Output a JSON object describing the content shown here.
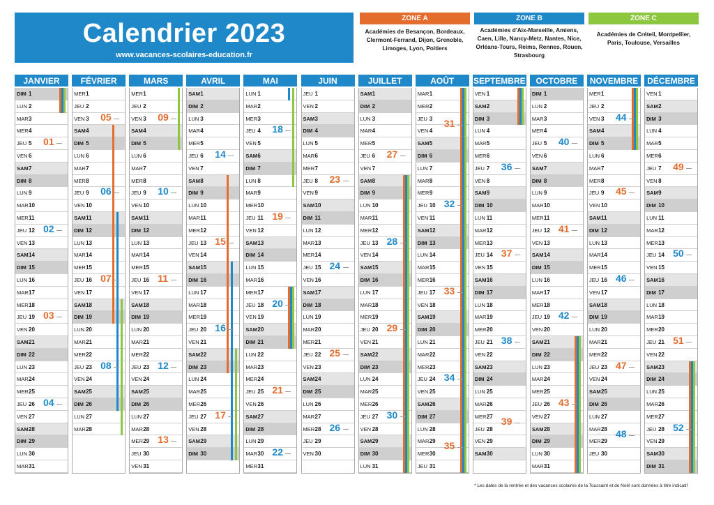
{
  "header": {
    "title": "Calendrier 2023",
    "site": "www.vacances-scolaires-education.fr"
  },
  "zones": [
    {
      "label": "ZONE A",
      "color": "#e46c2d",
      "text": "Académies de Besançon, Bordeaux, Clermont-Ferrand, Dijon, Grenoble, Limoges, Lyon, Poitiers"
    },
    {
      "label": "ZONE B",
      "color": "#1e88c9",
      "text": "Académies d'Aix-Marseille, Amiens, Caen, Lille, Nancy-Metz, Nantes, Nice, Orléans-Tours, Reims, Rennes, Rouen, Strasbourg"
    },
    {
      "label": "ZONE C",
      "color": "#8dc63f",
      "text": "Académies de Créteil, Montpellier, Paris, Toulouse, Versailles"
    }
  ],
  "colors": {
    "zoneA": "#e46c2d",
    "zoneB": "#1e88c9",
    "zoneC": "#8dc63f",
    "weekOdd": "#e46c2d",
    "weekEven": "#1e88c9"
  },
  "day_abbrev": [
    "DIM",
    "LUN",
    "MAR",
    "MER",
    "JEU",
    "VEN",
    "SAM"
  ],
  "months": [
    {
      "name": "JANVIER",
      "start": 0,
      "days": 31
    },
    {
      "name": "FÉVRIER",
      "start": 3,
      "days": 28
    },
    {
      "name": "MARS",
      "start": 3,
      "days": 31
    },
    {
      "name": "AVRIL",
      "start": 6,
      "days": 30
    },
    {
      "name": "MAI",
      "start": 1,
      "days": 31
    },
    {
      "name": "JUIN",
      "start": 4,
      "days": 30
    },
    {
      "name": "JUILLET",
      "start": 6,
      "days": 31
    },
    {
      "name": "AOÛT",
      "start": 2,
      "days": 31
    },
    {
      "name": "SEPTEMBRE",
      "start": 5,
      "days": 30
    },
    {
      "name": "OCTOBRE",
      "start": 0,
      "days": 31
    },
    {
      "name": "NOVEMBRE",
      "start": 3,
      "days": 30
    },
    {
      "name": "DÉCEMBRE",
      "start": 5,
      "days": 31
    }
  ],
  "holidays": [
    {
      "month": 0,
      "from": 1,
      "to": 2,
      "zones": [
        "A",
        "B",
        "C"
      ]
    },
    {
      "month": 1,
      "from": 4,
      "to": 19,
      "zones": [
        "A"
      ]
    },
    {
      "month": 1,
      "from": 11,
      "to": 26,
      "zones": [
        "B"
      ]
    },
    {
      "month": 1,
      "from": 18,
      "to": 28,
      "zones": [
        "C"
      ]
    },
    {
      "month": 2,
      "from": 1,
      "to": 5,
      "zones": [
        "C"
      ]
    },
    {
      "month": 3,
      "from": 8,
      "to": 23,
      "zones": [
        "A"
      ]
    },
    {
      "month": 3,
      "from": 15,
      "to": 30,
      "zones": [
        "B"
      ]
    },
    {
      "month": 3,
      "from": 22,
      "to": 30,
      "zones": [
        "C"
      ]
    },
    {
      "month": 4,
      "from": 1,
      "to": 1,
      "zones": [
        "B"
      ]
    },
    {
      "month": 4,
      "from": 1,
      "to": 8,
      "zones": [
        "C"
      ]
    },
    {
      "month": 4,
      "from": 17,
      "to": 21,
      "zones": [
        "A",
        "B",
        "C"
      ]
    },
    {
      "month": 6,
      "from": 8,
      "to": 31,
      "zones": [
        "A",
        "B",
        "C"
      ]
    },
    {
      "month": 7,
      "from": 1,
      "to": 31,
      "zones": [
        "A",
        "B",
        "C"
      ]
    },
    {
      "month": 8,
      "from": 1,
      "to": 3,
      "zones": [
        "A",
        "B",
        "C"
      ]
    },
    {
      "month": 9,
      "from": 21,
      "to": 31,
      "zones": [
        "A",
        "B",
        "C"
      ]
    },
    {
      "month": 10,
      "from": 1,
      "to": 5,
      "zones": [
        "A",
        "B",
        "C"
      ]
    },
    {
      "month": 11,
      "from": 23,
      "to": 31,
      "zones": [
        "A",
        "B",
        "C"
      ]
    }
  ],
  "weeks": [
    [
      "01",
      "02",
      "03",
      "04"
    ],
    [
      "05",
      "06",
      "07",
      "08"
    ],
    [
      "09",
      "10",
      "11",
      "12",
      "13"
    ],
    [
      "14",
      "15",
      "16",
      "17"
    ],
    [
      "18",
      "19",
      "20",
      "21",
      "22"
    ],
    [
      "23",
      "24",
      "25",
      "26"
    ],
    [
      "27",
      "28",
      "29",
      "30"
    ],
    [
      "31",
      "32",
      "33",
      "34",
      "35"
    ],
    [
      "36",
      "37",
      "38",
      "39"
    ],
    [
      "40",
      "41",
      "42",
      "43"
    ],
    [
      "44",
      "45",
      "46",
      "47",
      "48"
    ],
    [
      "49",
      "50",
      "51",
      "52"
    ]
  ],
  "footnote": "* Les dates de la rentrée et des vacances scolaires de la Toussaint et de Noël sont données à titre indicatif"
}
